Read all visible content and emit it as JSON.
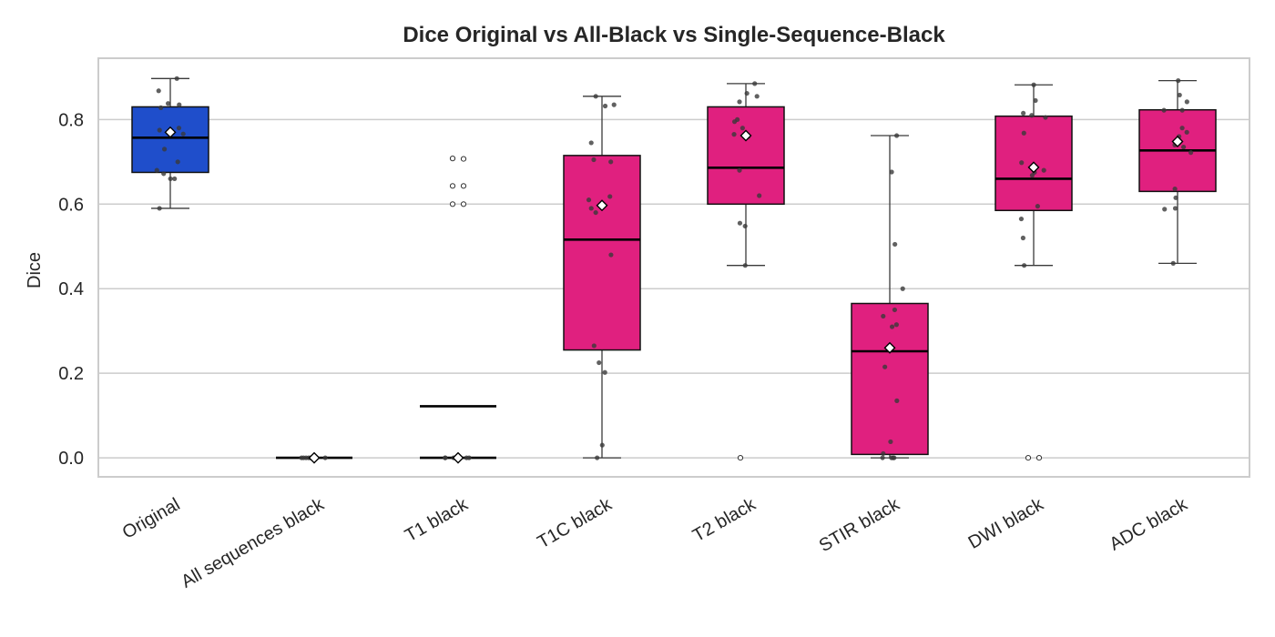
{
  "chart_data": {
    "type": "box",
    "title": "Dice Original vs All-Black vs Single-Sequence-Black",
    "xlabel": "",
    "ylabel": "Dice",
    "ylim": [
      -0.045,
      0.945
    ],
    "yticks": [
      0.0,
      0.2,
      0.4,
      0.6,
      0.8
    ],
    "ytick_labels": [
      "0.0",
      "0.2",
      "0.4",
      "0.6",
      "0.8"
    ],
    "grid": "horizontal",
    "legend": "none",
    "colors": {
      "original": "#1f4ecb",
      "ablated": "#e0207f",
      "whisker": "#3a3a3a",
      "median": "#000000",
      "points": "#3a3a3a"
    },
    "categories": [
      "Original",
      "All sequences black",
      "T1 black",
      "T1C black",
      "T2 black",
      "STIR black",
      "DWI black",
      "ADC black"
    ],
    "boxes": [
      {
        "category": "Original",
        "q1": 0.675,
        "median": 0.757,
        "q3": 0.83,
        "whisker_low": 0.59,
        "whisker_high": 0.897,
        "mean": 0.77,
        "points": [
          0.897,
          0.868,
          0.838,
          0.835,
          0.828,
          0.78,
          0.775,
          0.766,
          0.73,
          0.7,
          0.68,
          0.672,
          0.66,
          0.66,
          0.59
        ],
        "outliers": []
      },
      {
        "category": "All sequences black",
        "q1": 0.0,
        "median": 0.0,
        "q3": 0.0,
        "whisker_low": 0.0,
        "whisker_high": 0.0,
        "mean": 0.0,
        "points": [
          0.0,
          0.0,
          0.0,
          0.0,
          0.0,
          0.0,
          0.0,
          0.0
        ],
        "outliers": []
      },
      {
        "category": "T1 black",
        "q1": 0.0,
        "median": 0.0,
        "q3": 0.0,
        "whisker_low": 0.0,
        "whisker_high": 0.0,
        "mean": 0.0,
        "extra_line": 0.122,
        "points": [
          0.0,
          0.0,
          0.0,
          0.0,
          0.0,
          0.0
        ],
        "outliers": [
          0.708,
          0.707,
          0.643,
          0.643,
          0.6,
          0.6
        ]
      },
      {
        "category": "T1C black",
        "q1": 0.255,
        "median": 0.516,
        "q3": 0.715,
        "whisker_low": 0.0,
        "whisker_high": 0.855,
        "mean": 0.597,
        "points": [
          0.855,
          0.835,
          0.832,
          0.745,
          0.705,
          0.7,
          0.618,
          0.61,
          0.59,
          0.58,
          0.48,
          0.265,
          0.225,
          0.202,
          0.03,
          0.0
        ],
        "outliers": []
      },
      {
        "category": "T2 black",
        "q1": 0.6,
        "median": 0.686,
        "q3": 0.83,
        "whisker_low": 0.455,
        "whisker_high": 0.885,
        "mean": 0.762,
        "points": [
          0.885,
          0.862,
          0.855,
          0.842,
          0.8,
          0.795,
          0.78,
          0.765,
          0.76,
          0.68,
          0.62,
          0.555,
          0.548,
          0.455
        ],
        "outliers": [
          0.0
        ]
      },
      {
        "category": "STIR black",
        "q1": 0.008,
        "median": 0.252,
        "q3": 0.365,
        "whisker_low": 0.0,
        "whisker_high": 0.762,
        "mean": 0.26,
        "points": [
          0.762,
          0.676,
          0.505,
          0.4,
          0.35,
          0.335,
          0.315,
          0.31,
          0.215,
          0.135,
          0.038,
          0.01,
          0.0,
          0.0,
          0.0,
          0.0
        ],
        "outliers": []
      },
      {
        "category": "DWI black",
        "q1": 0.585,
        "median": 0.66,
        "q3": 0.808,
        "whisker_low": 0.455,
        "whisker_high": 0.882,
        "mean": 0.687,
        "points": [
          0.882,
          0.845,
          0.815,
          0.81,
          0.805,
          0.768,
          0.698,
          0.68,
          0.675,
          0.668,
          0.595,
          0.565,
          0.52,
          0.455
        ],
        "outliers": [
          0.0,
          0.0
        ]
      },
      {
        "category": "ADC black",
        "q1": 0.63,
        "median": 0.727,
        "q3": 0.823,
        "whisker_low": 0.46,
        "whisker_high": 0.892,
        "mean": 0.748,
        "points": [
          0.892,
          0.858,
          0.842,
          0.822,
          0.822,
          0.78,
          0.77,
          0.76,
          0.74,
          0.735,
          0.722,
          0.636,
          0.615,
          0.59,
          0.588,
          0.46
        ],
        "outliers": []
      }
    ]
  }
}
